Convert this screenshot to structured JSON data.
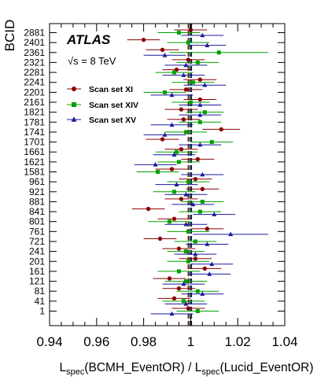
{
  "chart_data": {
    "type": "scatter",
    "orientation": "horizontal",
    "ylabel": "BCID",
    "xlabel": {
      "main1": "L",
      "sub1": "spec",
      "arg1": "(BCMH_EventOR) / ",
      "main2": "L",
      "sub2": "spec",
      "arg2": "(Lucid_EventOR)"
    },
    "experiment": "ATLAS",
    "energy_label": "√s = 8 TeV",
    "xlim": [
      0.94,
      1.04
    ],
    "x_ticks": [
      "0.94",
      "0.96",
      "0.98",
      "1",
      "1.02",
      "1.04"
    ],
    "grid": false,
    "legend_position": "upper-left",
    "categories": [
      "2881",
      "2401",
      "2361",
      "2321",
      "2281",
      "2241",
      "2201",
      "2161",
      "1821",
      "1781",
      "1741",
      "1701",
      "1661",
      "1621",
      "1581",
      "961",
      "921",
      "881",
      "841",
      "801",
      "761",
      "721",
      "241",
      "201",
      "161",
      "121",
      "81",
      "41",
      "1"
    ],
    "reference_lines": [
      {
        "value": 0.999,
        "color": "#8b0000"
      },
      {
        "value": 0.9997,
        "color": "#007a00"
      },
      {
        "value": 1.0003,
        "color": "#000080"
      }
    ],
    "series": [
      {
        "name": "Scan set XI",
        "marker": "circle",
        "color": "#8b0000",
        "values": [
          1.0,
          0.98,
          0.988,
          0.999,
          0.994,
          1.004,
          0.998,
          1.004,
          0.996,
          0.997,
          1.013,
          0.988,
          0.996,
          1.003,
          0.992,
          1.002,
          1.005,
          0.996,
          0.982,
          0.993,
          1.007,
          0.987,
          0.995,
          1.002,
          1.006,
          0.991,
          0.995,
          0.993,
          0.999
        ],
        "errors": [
          0.007,
          0.007,
          0.007,
          0.007,
          0.006,
          0.007,
          0.007,
          0.007,
          0.007,
          0.007,
          0.008,
          0.007,
          0.007,
          0.007,
          0.007,
          0.007,
          0.007,
          0.007,
          0.007,
          0.007,
          0.007,
          0.007,
          0.007,
          0.007,
          0.007,
          0.007,
          0.007,
          0.007,
          0.007
        ]
      },
      {
        "name": "Scan set XIV",
        "marker": "square",
        "color": "#00a000",
        "values": [
          0.995,
          0.999,
          1.012,
          1.003,
          0.993,
          1.001,
          0.989,
          1.0,
          1.006,
          1.004,
          0.998,
          1.009,
          0.994,
          0.995,
          0.986,
          0.999,
          0.993,
          1.005,
          1.004,
          0.991,
          0.999,
          1.002,
          0.998,
          0.999,
          0.995,
          0.998,
          1.003,
          0.997,
          1.003
        ],
        "errors": [
          0.009,
          0.009,
          0.021,
          0.009,
          0.008,
          0.009,
          0.009,
          0.008,
          0.008,
          0.009,
          0.009,
          0.009,
          0.009,
          0.009,
          0.009,
          0.009,
          0.009,
          0.009,
          0.009,
          0.009,
          0.009,
          0.009,
          0.008,
          0.009,
          0.009,
          0.009,
          0.009,
          0.009,
          0.009
        ]
      },
      {
        "name": "Scan set XV",
        "marker": "triangle",
        "color": "#1a1aa0",
        "values": [
          1.005,
          1.007,
          0.989,
          0.998,
          0.997,
          1.006,
          0.992,
          1.004,
          1.004,
          0.992,
          0.989,
          1.004,
          0.993,
          0.985,
          1.005,
          0.994,
          0.998,
          1.001,
          1.01,
          0.998,
          1.017,
          1.007,
          1.002,
          1.009,
          1.008,
          0.997,
          1.005,
          0.998,
          0.992
        ],
        "errors": [
          0.009,
          0.008,
          0.009,
          0.009,
          0.009,
          0.009,
          0.009,
          0.009,
          0.009,
          0.009,
          0.009,
          0.009,
          0.009,
          0.009,
          0.009,
          0.009,
          0.009,
          0.009,
          0.009,
          0.009,
          0.016,
          0.009,
          0.009,
          0.009,
          0.009,
          0.009,
          0.009,
          0.009,
          0.009
        ]
      }
    ]
  }
}
